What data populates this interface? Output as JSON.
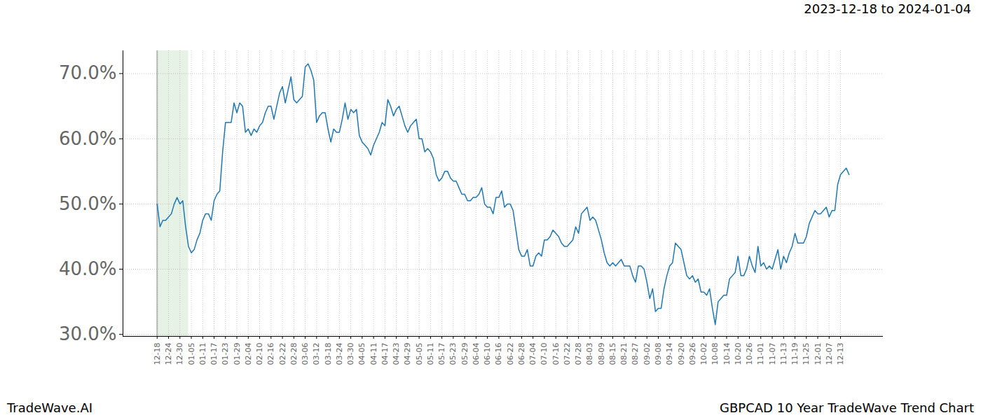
{
  "chart_data": {
    "type": "line",
    "title": "2023-12-18 to 2024-01-04",
    "caption_left": "TradeWave.AI",
    "caption_right": "GBPCAD 10 Year TradeWave Trend Chart",
    "color": "#1f77b4",
    "grid": true,
    "ylim": [
      29.7,
      73.5
    ],
    "yticks": [
      {
        "value": 30,
        "label": "30.0%"
      },
      {
        "value": 40,
        "label": "40.0%"
      },
      {
        "value": 50,
        "label": "50.0%"
      },
      {
        "value": 60,
        "label": "60.0%"
      },
      {
        "value": 70,
        "label": "70.0%"
      }
    ],
    "highlight": {
      "start": 0,
      "end": 11
    },
    "categories": [
      "12-18",
      null,
      null,
      null,
      "12-24",
      null,
      null,
      null,
      "12-30",
      null,
      null,
      null,
      "01-05",
      null,
      null,
      null,
      "01-11",
      null,
      null,
      null,
      "01-17",
      null,
      null,
      null,
      "01-23",
      null,
      null,
      null,
      "01-29",
      null,
      null,
      null,
      "02-04",
      null,
      null,
      null,
      "02-10",
      null,
      null,
      null,
      "02-16",
      null,
      null,
      null,
      "02-22",
      null,
      null,
      null,
      "02-28",
      null,
      null,
      null,
      "03-06",
      null,
      null,
      null,
      "03-12",
      null,
      null,
      null,
      "03-18",
      null,
      null,
      null,
      "03-24",
      null,
      null,
      null,
      "03-30",
      null,
      null,
      null,
      "04-05",
      null,
      null,
      null,
      "04-11",
      null,
      null,
      null,
      "04-17",
      null,
      null,
      null,
      "04-23",
      null,
      null,
      null,
      "04-29",
      null,
      null,
      null,
      "05-05",
      null,
      null,
      null,
      "05-11",
      null,
      null,
      null,
      "05-17",
      null,
      null,
      null,
      "05-23",
      null,
      null,
      null,
      "05-29",
      null,
      null,
      null,
      "06-04",
      null,
      null,
      null,
      "06-10",
      null,
      null,
      null,
      "06-16",
      null,
      null,
      null,
      "06-22",
      null,
      null,
      null,
      "06-28",
      null,
      null,
      null,
      "07-04",
      null,
      null,
      null,
      "07-10",
      null,
      null,
      null,
      "07-16",
      null,
      null,
      null,
      "07-22",
      null,
      null,
      null,
      "07-28",
      null,
      null,
      null,
      "08-03",
      null,
      null,
      null,
      "08-09",
      null,
      null,
      null,
      "08-15",
      null,
      null,
      null,
      "08-21",
      null,
      null,
      null,
      "08-27",
      null,
      null,
      null,
      "09-02",
      null,
      null,
      null,
      "09-08",
      null,
      null,
      null,
      "09-14",
      null,
      null,
      null,
      "09-20",
      null,
      null,
      null,
      "09-26",
      null,
      null,
      null,
      "10-02",
      null,
      null,
      null,
      "10-08",
      null,
      null,
      null,
      "10-14",
      null,
      null,
      null,
      "10-20",
      null,
      null,
      null,
      "10-26",
      null,
      null,
      null,
      "11-01",
      null,
      null,
      null,
      "11-07",
      null,
      null,
      null,
      "11-13",
      null,
      null,
      null,
      "11-19",
      null,
      null,
      null,
      "11-25",
      null,
      null,
      null,
      "12-01",
      null,
      null,
      null,
      "12-07",
      null,
      null,
      null,
      "12-13",
      null,
      null,
      null
    ],
    "values": [
      50,
      46.5,
      47.5,
      47.5,
      48,
      48.5,
      50,
      51,
      50,
      50.5,
      46.5,
      43.5,
      42.5,
      43,
      44.5,
      45.5,
      47.5,
      48.5,
      48.5,
      47.5,
      50.5,
      51.5,
      52,
      58,
      62.5,
      62.5,
      62.5,
      65.5,
      64,
      65.5,
      65,
      61,
      61.5,
      60.5,
      61.5,
      61,
      62,
      62.5,
      64,
      65,
      65,
      63,
      65,
      67,
      68,
      65.5,
      67.5,
      69.5,
      66,
      65.5,
      66,
      66.5,
      71,
      71.5,
      70.5,
      69,
      62.5,
      63.5,
      64,
      64,
      61.5,
      59.5,
      61.5,
      61,
      61,
      63,
      65.5,
      63,
      64.5,
      64,
      64.5,
      60.5,
      59.5,
      59,
      58.5,
      57.5,
      59,
      60,
      61,
      62.5,
      62,
      66,
      65,
      63.5,
      64.5,
      65,
      63.5,
      62,
      61,
      62,
      62.5,
      63,
      60,
      60,
      58,
      58.5,
      58,
      57,
      54.5,
      53.5,
      54,
      55,
      55,
      54,
      53.5,
      53.5,
      52.5,
      51.5,
      51.5,
      50.5,
      50.5,
      51,
      51,
      51.5,
      52.5,
      50,
      49.5,
      49.5,
      48.5,
      51,
      51,
      52,
      49.5,
      50,
      50,
      49,
      46,
      43,
      42,
      42,
      43,
      40.5,
      40.5,
      42,
      42.5,
      42,
      44.5,
      44.5,
      45,
      46,
      45.5,
      45,
      44,
      43.5,
      43.5,
      44,
      44.5,
      46.5,
      45.5,
      48.5,
      49,
      49.5,
      47.5,
      48,
      47.5,
      46,
      44.5,
      42.5,
      41,
      40.5,
      41,
      40.5,
      41,
      41.5,
      40.5,
      40.5,
      40.5,
      39,
      38,
      40.5,
      40.5,
      40,
      38,
      35.5,
      37,
      33.5,
      34,
      34,
      37,
      39,
      40.5,
      41,
      44,
      43.5,
      43,
      41,
      39,
      38.5,
      39,
      38,
      38.5,
      36.5,
      36.5,
      36,
      37,
      34,
      31.5,
      35,
      35.5,
      36,
      36,
      38.5,
      39,
      39.5,
      42,
      39,
      39,
      40,
      42,
      40.5,
      39.5,
      43.5,
      40.5,
      41,
      40,
      40.5,
      40,
      41.5,
      43,
      40,
      42,
      41,
      42.5,
      43.5,
      45.5,
      44,
      44,
      44,
      45,
      47,
      48,
      49,
      48.5,
      48.5,
      49,
      49.5,
      48,
      49,
      49,
      53,
      54.5,
      55,
      55.5,
      54.5
    ]
  }
}
